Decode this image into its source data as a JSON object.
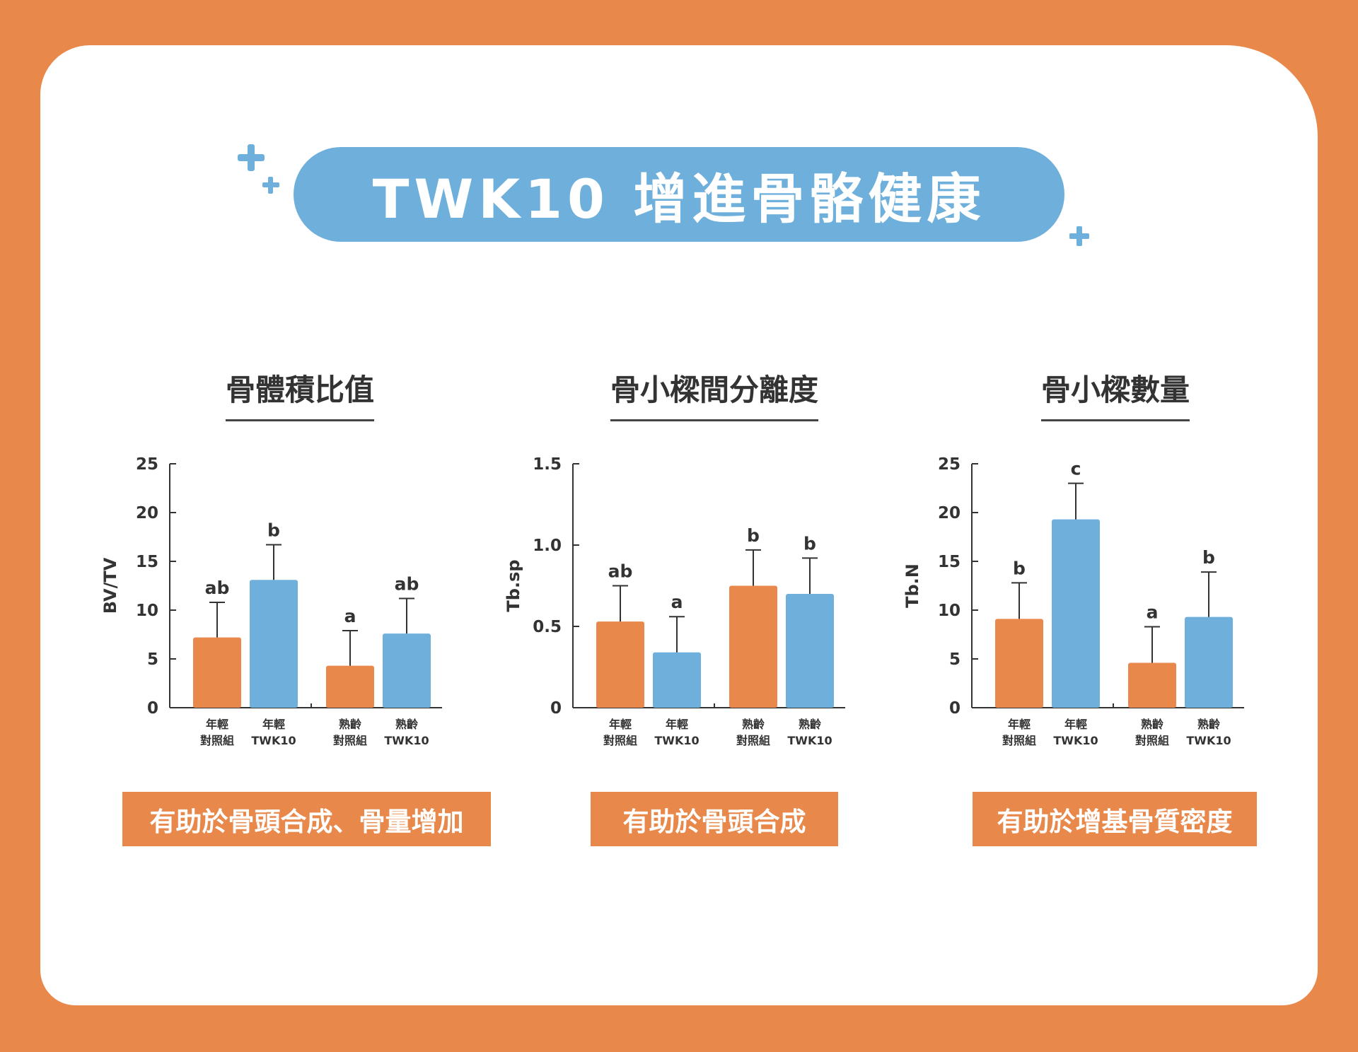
{
  "title": "TWK10 增進骨骼健康",
  "colors": {
    "background": "#E8884A",
    "accent_blue": "#6EB0DB",
    "control": "#E8884A",
    "twk10": "#6EB0DB"
  },
  "charts": [
    {
      "heading": "骨體積比值",
      "caption": "有助於骨頭合成、骨量增加"
    },
    {
      "heading": "骨小樑間分離度",
      "caption": "有助於骨頭合成"
    },
    {
      "heading": "骨小樑數量",
      "caption": "有助於增基骨質密度"
    }
  ],
  "chart_data": [
    {
      "type": "bar",
      "ylabel": "BV/TV",
      "ylim": [
        0,
        25
      ],
      "yticks": [
        "0",
        "5",
        "10",
        "15",
        "20",
        "25"
      ],
      "categories": [
        [
          "年輕",
          "對照組"
        ],
        [
          "年輕",
          "TWK10"
        ],
        [
          "熟齡",
          "對照組"
        ],
        [
          "熟齡",
          "TWK10"
        ]
      ],
      "values": [
        7.2,
        13.1,
        4.3,
        7.6
      ],
      "errors": [
        3.6,
        3.6,
        3.6,
        3.6
      ],
      "significance": [
        "ab",
        "b",
        "a",
        "ab"
      ]
    },
    {
      "type": "bar",
      "ylabel": "Tb.sp",
      "ylim": [
        0,
        1.5
      ],
      "yticks": [
        "0",
        "0.5",
        "1.0",
        "1.5"
      ],
      "categories": [
        [
          "年輕",
          "對照組"
        ],
        [
          "年輕",
          "TWK10"
        ],
        [
          "熟齡",
          "對照組"
        ],
        [
          "熟齡",
          "TWK10"
        ]
      ],
      "values": [
        0.53,
        0.34,
        0.75,
        0.7
      ],
      "errors": [
        0.22,
        0.22,
        0.22,
        0.22
      ],
      "significance": [
        "ab",
        "a",
        "b",
        "b"
      ]
    },
    {
      "type": "bar",
      "ylabel": "Tb.N",
      "ylim": [
        0,
        25
      ],
      "yticks": [
        "0",
        "5",
        "10",
        "15",
        "20",
        "25"
      ],
      "categories": [
        [
          "年輕",
          "對照組"
        ],
        [
          "年輕",
          "TWK10"
        ],
        [
          "熟齡",
          "對照組"
        ],
        [
          "熟齡",
          "TWK10"
        ]
      ],
      "values": [
        9.1,
        19.3,
        4.6,
        9.3
      ],
      "errors": [
        3.7,
        3.7,
        3.7,
        4.6
      ],
      "significance": [
        "b",
        "c",
        "a",
        "b"
      ]
    }
  ]
}
